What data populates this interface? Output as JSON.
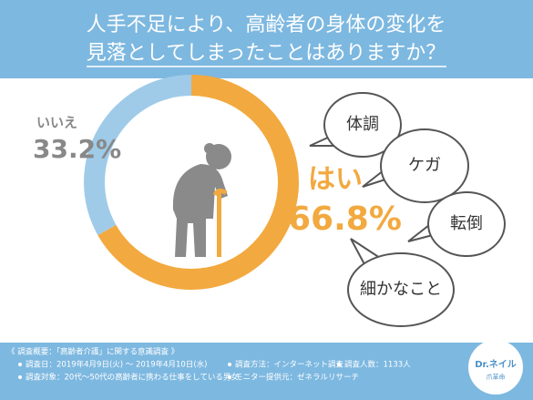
{
  "chart_data": {
    "type": "pie",
    "title": [
      "人手不足により、高齢者の身体の変化を",
      "見落としてしまったことはありますか？"
    ],
    "categories": [
      "はい",
      "いいえ"
    ],
    "values": [
      66.8,
      33.2
    ],
    "value_labels": [
      "66.8%",
      "33.2%"
    ],
    "colors": [
      "#f2a93f",
      "#9fcbe9"
    ],
    "annotations": [
      "体調",
      "ケガ",
      "転倒",
      "細かなこと"
    ],
    "notes": {
      "heading": "《 調査概要：「高齢者介護」に関する意識調査 》",
      "date": "調査日：2019年4月9日(火) 〜 2019年4月10日(水)",
      "method": "調査方法：インターネット調査",
      "count": "調査人数：1133人",
      "target": "調査対象：20代〜50代の高齢者に携わる仕事をしている男女",
      "provider": "モニター提供元：ゼネラルリサーチ"
    },
    "logo": {
      "name": "Dr.ネイル",
      "sub": "爪革命"
    }
  }
}
